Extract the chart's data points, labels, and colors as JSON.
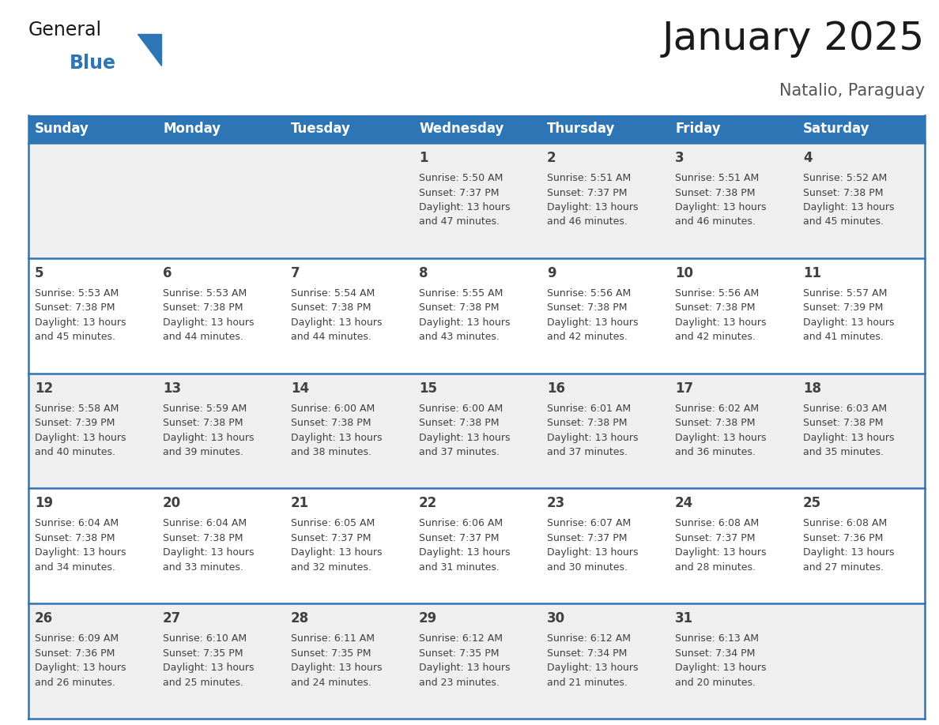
{
  "title": "January 2025",
  "subtitle": "Natalio, Paraguay",
  "header_color": "#2E75B6",
  "header_text_color": "#FFFFFF",
  "row_bg_colors": [
    "#EFEFEF",
    "#FFFFFF"
  ],
  "border_color": "#2E75B6",
  "text_color": "#404040",
  "days_of_week": [
    "Sunday",
    "Monday",
    "Tuesday",
    "Wednesday",
    "Thursday",
    "Friday",
    "Saturday"
  ],
  "calendar_data": [
    [
      {
        "day": null,
        "info": null
      },
      {
        "day": null,
        "info": null
      },
      {
        "day": null,
        "info": null
      },
      {
        "day": 1,
        "info": "Sunrise: 5:50 AM\nSunset: 7:37 PM\nDaylight: 13 hours\nand 47 minutes."
      },
      {
        "day": 2,
        "info": "Sunrise: 5:51 AM\nSunset: 7:37 PM\nDaylight: 13 hours\nand 46 minutes."
      },
      {
        "day": 3,
        "info": "Sunrise: 5:51 AM\nSunset: 7:38 PM\nDaylight: 13 hours\nand 46 minutes."
      },
      {
        "day": 4,
        "info": "Sunrise: 5:52 AM\nSunset: 7:38 PM\nDaylight: 13 hours\nand 45 minutes."
      }
    ],
    [
      {
        "day": 5,
        "info": "Sunrise: 5:53 AM\nSunset: 7:38 PM\nDaylight: 13 hours\nand 45 minutes."
      },
      {
        "day": 6,
        "info": "Sunrise: 5:53 AM\nSunset: 7:38 PM\nDaylight: 13 hours\nand 44 minutes."
      },
      {
        "day": 7,
        "info": "Sunrise: 5:54 AM\nSunset: 7:38 PM\nDaylight: 13 hours\nand 44 minutes."
      },
      {
        "day": 8,
        "info": "Sunrise: 5:55 AM\nSunset: 7:38 PM\nDaylight: 13 hours\nand 43 minutes."
      },
      {
        "day": 9,
        "info": "Sunrise: 5:56 AM\nSunset: 7:38 PM\nDaylight: 13 hours\nand 42 minutes."
      },
      {
        "day": 10,
        "info": "Sunrise: 5:56 AM\nSunset: 7:38 PM\nDaylight: 13 hours\nand 42 minutes."
      },
      {
        "day": 11,
        "info": "Sunrise: 5:57 AM\nSunset: 7:39 PM\nDaylight: 13 hours\nand 41 minutes."
      }
    ],
    [
      {
        "day": 12,
        "info": "Sunrise: 5:58 AM\nSunset: 7:39 PM\nDaylight: 13 hours\nand 40 minutes."
      },
      {
        "day": 13,
        "info": "Sunrise: 5:59 AM\nSunset: 7:38 PM\nDaylight: 13 hours\nand 39 minutes."
      },
      {
        "day": 14,
        "info": "Sunrise: 6:00 AM\nSunset: 7:38 PM\nDaylight: 13 hours\nand 38 minutes."
      },
      {
        "day": 15,
        "info": "Sunrise: 6:00 AM\nSunset: 7:38 PM\nDaylight: 13 hours\nand 37 minutes."
      },
      {
        "day": 16,
        "info": "Sunrise: 6:01 AM\nSunset: 7:38 PM\nDaylight: 13 hours\nand 37 minutes."
      },
      {
        "day": 17,
        "info": "Sunrise: 6:02 AM\nSunset: 7:38 PM\nDaylight: 13 hours\nand 36 minutes."
      },
      {
        "day": 18,
        "info": "Sunrise: 6:03 AM\nSunset: 7:38 PM\nDaylight: 13 hours\nand 35 minutes."
      }
    ],
    [
      {
        "day": 19,
        "info": "Sunrise: 6:04 AM\nSunset: 7:38 PM\nDaylight: 13 hours\nand 34 minutes."
      },
      {
        "day": 20,
        "info": "Sunrise: 6:04 AM\nSunset: 7:38 PM\nDaylight: 13 hours\nand 33 minutes."
      },
      {
        "day": 21,
        "info": "Sunrise: 6:05 AM\nSunset: 7:37 PM\nDaylight: 13 hours\nand 32 minutes."
      },
      {
        "day": 22,
        "info": "Sunrise: 6:06 AM\nSunset: 7:37 PM\nDaylight: 13 hours\nand 31 minutes."
      },
      {
        "day": 23,
        "info": "Sunrise: 6:07 AM\nSunset: 7:37 PM\nDaylight: 13 hours\nand 30 minutes."
      },
      {
        "day": 24,
        "info": "Sunrise: 6:08 AM\nSunset: 7:37 PM\nDaylight: 13 hours\nand 28 minutes."
      },
      {
        "day": 25,
        "info": "Sunrise: 6:08 AM\nSunset: 7:36 PM\nDaylight: 13 hours\nand 27 minutes."
      }
    ],
    [
      {
        "day": 26,
        "info": "Sunrise: 6:09 AM\nSunset: 7:36 PM\nDaylight: 13 hours\nand 26 minutes."
      },
      {
        "day": 27,
        "info": "Sunrise: 6:10 AM\nSunset: 7:35 PM\nDaylight: 13 hours\nand 25 minutes."
      },
      {
        "day": 28,
        "info": "Sunrise: 6:11 AM\nSunset: 7:35 PM\nDaylight: 13 hours\nand 24 minutes."
      },
      {
        "day": 29,
        "info": "Sunrise: 6:12 AM\nSunset: 7:35 PM\nDaylight: 13 hours\nand 23 minutes."
      },
      {
        "day": 30,
        "info": "Sunrise: 6:12 AM\nSunset: 7:34 PM\nDaylight: 13 hours\nand 21 minutes."
      },
      {
        "day": 31,
        "info": "Sunrise: 6:13 AM\nSunset: 7:34 PM\nDaylight: 13 hours\nand 20 minutes."
      },
      {
        "day": null,
        "info": null
      }
    ]
  ],
  "logo_text_general": "General",
  "logo_text_blue": "Blue",
  "logo_color_general": "#1a1a1a",
  "logo_color_blue": "#2E75B6",
  "title_fontsize": 36,
  "subtitle_fontsize": 15,
  "day_header_fontsize": 12,
  "day_num_fontsize": 12,
  "info_fontsize": 9
}
